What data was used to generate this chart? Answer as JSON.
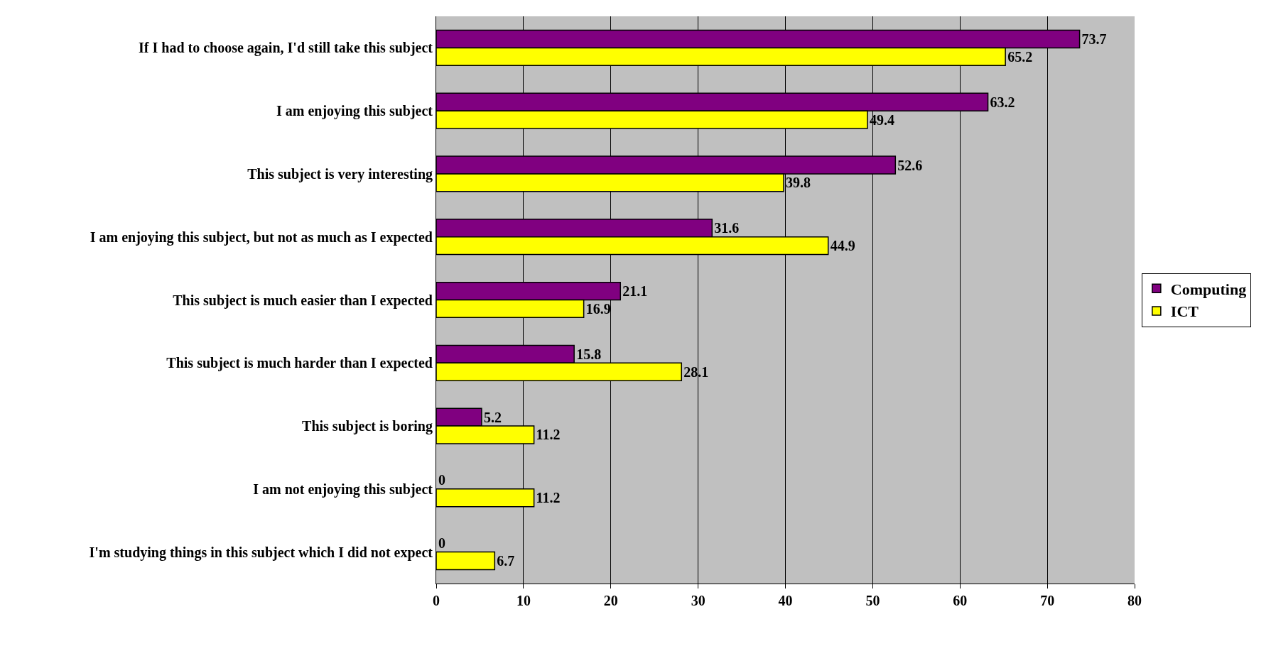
{
  "chart_data": {
    "type": "bar",
    "orientation": "horizontal",
    "categories": [
      "If I had to choose again, I'd still take this subject",
      "I am enjoying this subject",
      "This subject is very interesting",
      "I am enjoying this subject, but not as much as I expected",
      "This subject is much easier than I expected",
      "This subject is much harder than I expected",
      "This subject is boring",
      "I am not enjoying this subject",
      "I'm studying things in this subject which I did not expect"
    ],
    "series": [
      {
        "name": "Computing",
        "color": "#800080",
        "values": [
          73.7,
          63.2,
          52.6,
          31.6,
          21.1,
          15.8,
          5.2,
          0,
          0
        ]
      },
      {
        "name": "ICT",
        "color": "#ffff00",
        "values": [
          65.2,
          49.4,
          39.8,
          44.9,
          16.9,
          28.1,
          11.2,
          11.2,
          6.7
        ]
      }
    ],
    "xlim": [
      0,
      80
    ],
    "xticks": [
      0,
      10,
      20,
      30,
      40,
      50,
      60,
      70,
      80
    ],
    "grid": "x",
    "legend": "right",
    "data_labels": true
  }
}
